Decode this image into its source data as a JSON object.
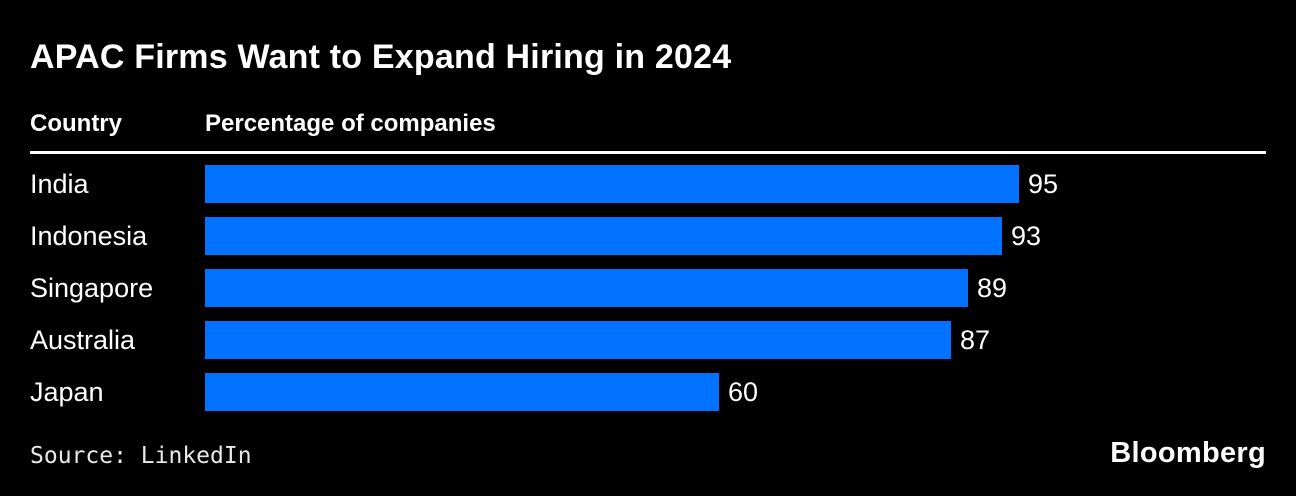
{
  "title": "APAC Firms Want to Expand Hiring in 2024",
  "columns": {
    "country_header": "Country",
    "value_header": "Percentage of companies"
  },
  "source": "Source: LinkedIn",
  "brand": "Bloomberg",
  "colors": {
    "background": "#000000",
    "bar": "#0072ff",
    "text": "#ffffff",
    "rule": "#ffffff"
  },
  "chart_data": {
    "type": "bar",
    "orientation": "horizontal",
    "title": "APAC Firms Want to Expand Hiring in 2024",
    "xlabel": "Percentage of companies",
    "ylabel": "Country",
    "categories": [
      "India",
      "Indonesia",
      "Singapore",
      "Australia",
      "Japan"
    ],
    "values": [
      95,
      93,
      89,
      87,
      60
    ],
    "xlim": [
      0,
      100
    ],
    "grid": false,
    "legend": false,
    "value_labels": true,
    "bar_color": "#0072ff"
  }
}
